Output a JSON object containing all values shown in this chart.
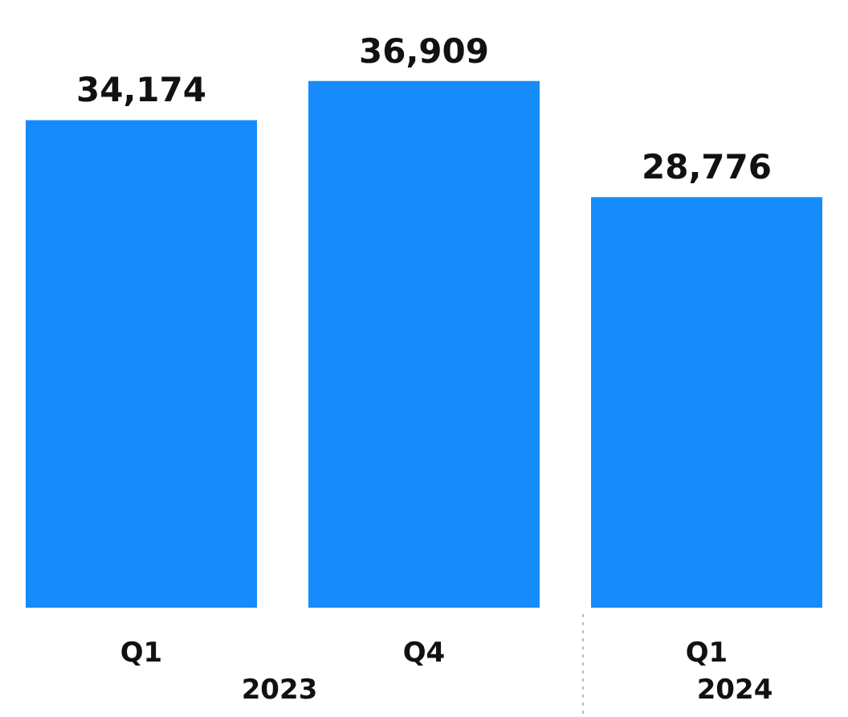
{
  "chart_data": {
    "type": "bar",
    "categories": [
      "Q1",
      "Q4",
      "Q1"
    ],
    "values": [
      34174,
      36909,
      28776
    ],
    "value_labels": [
      "34,174",
      "36,909",
      "28,776"
    ],
    "color": "#168cfb",
    "annotations": [
      "2023",
      "2024"
    ],
    "tick_labels": "x"
  }
}
